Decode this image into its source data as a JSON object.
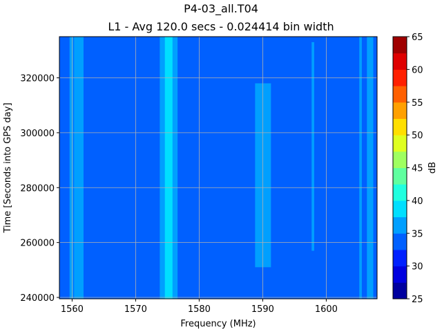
{
  "chart_data": {
    "type": "heatmap",
    "title": "P4-03_all.T04",
    "subtitle": "L1 - Avg 120.0 secs - 0.024414 bin width",
    "xlabel": "Frequency (MHz)",
    "ylabel": "Time [Seconds into GPS day]",
    "xlim": [
      1558,
      1608
    ],
    "ylim": [
      239500,
      335000
    ],
    "xticks": [
      1560,
      1570,
      1580,
      1590,
      1600
    ],
    "yticks": [
      240000,
      260000,
      280000,
      300000,
      320000
    ],
    "xtick_labels": [
      "1560",
      "1570",
      "1580",
      "1590",
      "1600"
    ],
    "ytick_labels": [
      "240000",
      "260000",
      "280000",
      "300000",
      "320000"
    ],
    "grid": true,
    "colorbar": {
      "label": "dB",
      "min": 25,
      "max": 65,
      "ticks": [
        25,
        30,
        35,
        40,
        45,
        50,
        55,
        60,
        65
      ],
      "tick_labels": [
        "25",
        "30",
        "35",
        "40",
        "45",
        "50",
        "55",
        "60",
        "65"
      ],
      "levels": [
        25,
        27.5,
        30,
        32.5,
        35,
        37.5,
        40,
        42.5,
        45,
        47.5,
        50,
        52.5,
        55,
        57.5,
        60,
        62.5,
        65
      ],
      "colors": [
        "#00009f",
        "#0000df",
        "#0020ff",
        "#0060ff",
        "#009fff",
        "#00dfff",
        "#20ffdf",
        "#60ff9f",
        "#9fff60",
        "#dfff20",
        "#ffdf00",
        "#ffa000",
        "#ff6000",
        "#ff2000",
        "#df0000",
        "#9f0000"
      ]
    },
    "background_db": 33.7,
    "bands": [
      {
        "f_start": 1559.6,
        "f_end": 1560.2,
        "t_start": 239500,
        "t_end": 335000,
        "db": 36.5
      },
      {
        "f_start": 1560.3,
        "f_end": 1561.8,
        "t_start": 239500,
        "t_end": 335000,
        "db": 36.0
      },
      {
        "f_start": 1573.8,
        "f_end": 1576.6,
        "t_start": 239500,
        "t_end": 335000,
        "db": 36.2
      },
      {
        "f_start": 1574.6,
        "f_end": 1575.8,
        "t_start": 239500,
        "t_end": 335000,
        "db": 38.7
      },
      {
        "f_start": 1588.8,
        "f_end": 1591.3,
        "t_start": 251000,
        "t_end": 318000,
        "db": 36.0
      },
      {
        "f_start": 1597.7,
        "f_end": 1598.1,
        "t_start": 257000,
        "t_end": 333000,
        "db": 36.0
      },
      {
        "f_start": 1605.2,
        "f_end": 1605.6,
        "t_start": 239500,
        "t_end": 335000,
        "db": 36.0
      },
      {
        "f_start": 1606.4,
        "f_end": 1607.4,
        "t_start": 239500,
        "t_end": 335000,
        "db": 36.0
      }
    ]
  }
}
